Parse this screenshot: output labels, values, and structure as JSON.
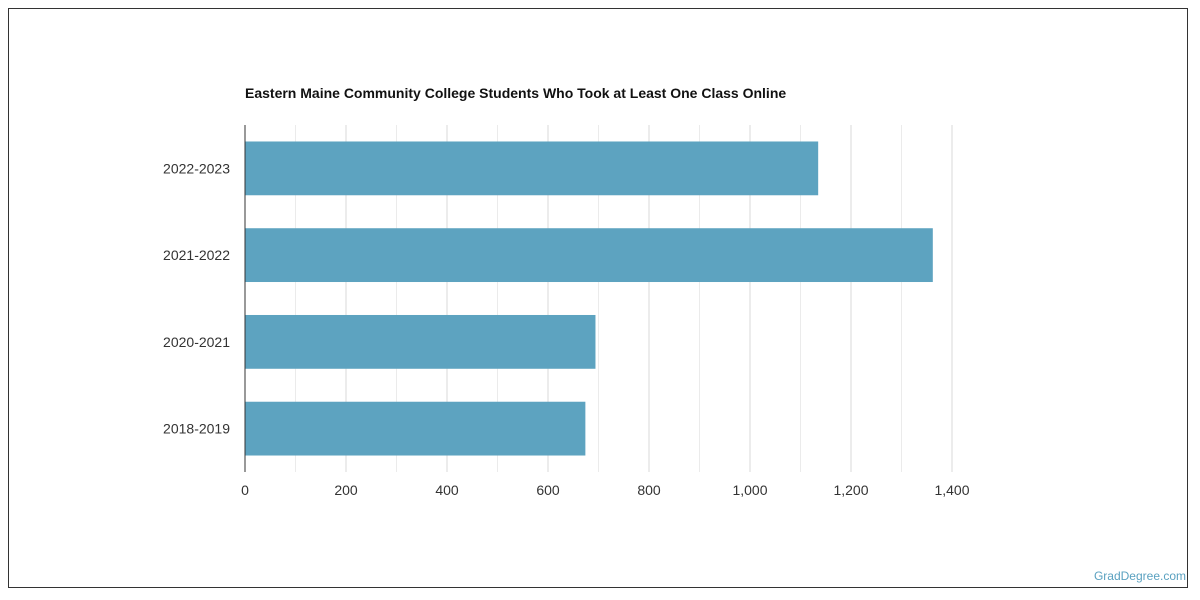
{
  "chart_data": {
    "type": "bar",
    "orientation": "horizontal",
    "title": "Eastern Maine Community College Students Who Took at Least One Class Online",
    "categories": [
      "2022-2023",
      "2021-2022",
      "2020-2021",
      "2018-2019"
    ],
    "values": [
      1135,
      1362,
      694,
      674
    ],
    "xlim": [
      0,
      1400
    ],
    "x_ticks": [
      "0",
      "200",
      "400",
      "600",
      "800",
      "1,000",
      "1,200",
      "1,400"
    ],
    "grid": true,
    "bar_color": "#5da3c0"
  },
  "footer": {
    "credit": "GradDegree.com"
  }
}
